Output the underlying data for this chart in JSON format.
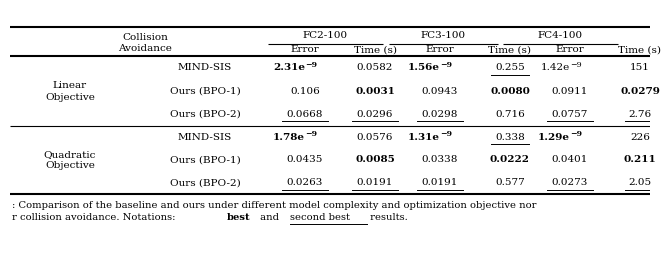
{
  "font_size": 7.5,
  "font_family": "DejaVu Serif",
  "background": "#ffffff",
  "col_groups": [
    "FC2-100",
    "FC3-100",
    "FC4-100"
  ],
  "col_sub": [
    "Error",
    "Time (s)"
  ],
  "collision_label": [
    "Collision",
    "Avoidance"
  ],
  "group_labels": [
    [
      "Linear",
      "Objective"
    ],
    [
      "Quadratic",
      "Objective"
    ]
  ],
  "rows": [
    {
      "method": "MIND-SIS",
      "vals": [
        "2.31e-9",
        "0.0582",
        "1.56e-9",
        "0.255",
        "1.42e-9",
        "151"
      ],
      "bold": [
        true,
        false,
        true,
        false,
        false,
        false
      ],
      "under": [
        false,
        false,
        false,
        true,
        false,
        false
      ]
    },
    {
      "method": "Ours (BPO-1)",
      "vals": [
        "0.106",
        "0.0031",
        "0.0943",
        "0.0080",
        "0.0911",
        "0.0279"
      ],
      "bold": [
        false,
        true,
        false,
        true,
        false,
        true
      ],
      "under": [
        false,
        false,
        false,
        false,
        false,
        false
      ]
    },
    {
      "method": "Ours (BPO-2)",
      "vals": [
        "0.0668",
        "0.0296",
        "0.0298",
        "0.716",
        "0.0757",
        "2.76"
      ],
      "bold": [
        false,
        false,
        false,
        false,
        false,
        false
      ],
      "under": [
        true,
        true,
        true,
        false,
        true,
        true
      ]
    },
    {
      "method": "MIND-SIS",
      "vals": [
        "1.78e-9",
        "0.0576",
        "1.31e-9",
        "0.338",
        "1.29e-9",
        "226"
      ],
      "bold": [
        true,
        false,
        true,
        false,
        true,
        false
      ],
      "under": [
        false,
        false,
        false,
        true,
        false,
        false
      ]
    },
    {
      "method": "Ours (BPO-1)",
      "vals": [
        "0.0435",
        "0.0085",
        "0.0338",
        "0.0222",
        "0.0401",
        "0.211"
      ],
      "bold": [
        false,
        true,
        false,
        true,
        false,
        true
      ],
      "under": [
        false,
        false,
        false,
        false,
        false,
        false
      ]
    },
    {
      "method": "Ours (BPO-2)",
      "vals": [
        "0.0263",
        "0.0191",
        "0.0191",
        "0.577",
        "0.0273",
        "2.05"
      ],
      "bold": [
        false,
        false,
        false,
        false,
        false,
        false
      ],
      "under": [
        true,
        true,
        true,
        false,
        true,
        true
      ]
    }
  ],
  "caption_line1": ": Comparison of the baseline and ours under different model complexity and optimization objective nor",
  "caption_line2_pre": "r collision avoidance. Notations: ",
  "caption_best": "best",
  "caption_mid": " and ",
  "caption_second": "second best",
  "caption_post": " results."
}
